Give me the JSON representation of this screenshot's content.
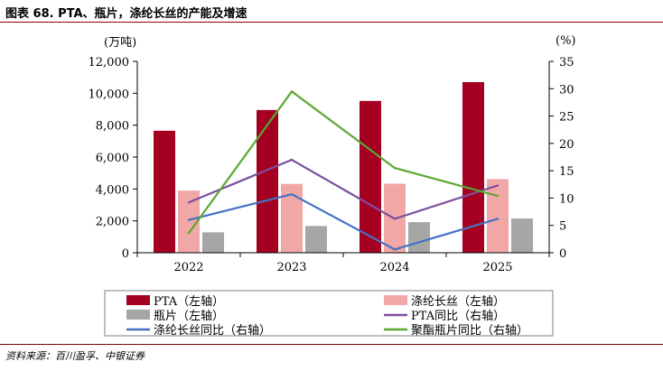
{
  "header": {
    "title": "图表 68. PTA、瓶片，涤纶长丝的产能及增速"
  },
  "footer": {
    "source": "资料来源：百川盈孚、中银证券"
  },
  "colors": {
    "pta": "#a50021",
    "polyester": "#f2a7a7",
    "bottle": "#a6a6a6",
    "pta_yoy": "#7b4f9d",
    "polyester_yoy": "#4472c4",
    "bottle_yoy": "#5aa832",
    "accent": "#8b0000"
  },
  "chart_data": {
    "type": "bar",
    "categories": [
      "2022",
      "2023",
      "2024",
      "2025"
    ],
    "y_left": {
      "label": "(万吨)",
      "ylim": [
        0,
        12000
      ],
      "ticks": [
        0,
        2000,
        4000,
        6000,
        8000,
        10000,
        12000
      ],
      "tick_labels": [
        "0",
        "2,000",
        "4,000",
        "6,000",
        "8,000",
        "10,000",
        "12,000"
      ]
    },
    "y_right": {
      "label": "(%)",
      "ylim": [
        0,
        35
      ],
      "ticks": [
        0,
        5,
        10,
        15,
        20,
        25,
        30,
        35
      ],
      "tick_labels": [
        "0",
        "5",
        "10",
        "15",
        "20",
        "25",
        "30",
        "35"
      ]
    },
    "bars": [
      {
        "name": "PTA（左轴）",
        "values": [
          7650,
          8950,
          9520,
          10700
        ],
        "color_key": "pta"
      },
      {
        "name": "涤纶长丝（左轴）",
        "values": [
          3900,
          4320,
          4330,
          4620
        ],
        "color_key": "polyester"
      },
      {
        "name": "瓶片（左轴）",
        "values": [
          1280,
          1680,
          1920,
          2150
        ],
        "color_key": "bottle"
      }
    ],
    "lines": [
      {
        "name": "PTA同比（右轴）",
        "values": [
          9.2,
          17.0,
          6.2,
          12.3
        ],
        "color_key": "pta_yoy"
      },
      {
        "name": "涤纶长丝同比（右轴）",
        "values": [
          6.0,
          10.7,
          0.6,
          6.2
        ],
        "color_key": "polyester_yoy"
      },
      {
        "name": "聚酯瓶片同比（右轴）",
        "values": [
          3.6,
          29.5,
          15.5,
          10.4
        ],
        "color_key": "bottle_yoy"
      }
    ],
    "legend_order": [
      {
        "name": "PTA（左轴）",
        "kind": "bar",
        "color_key": "pta"
      },
      {
        "name": "涤纶长丝（左轴）",
        "kind": "bar",
        "color_key": "polyester"
      },
      {
        "name": "瓶片（左轴）",
        "kind": "bar",
        "color_key": "bottle"
      },
      {
        "name": "PTA同比（右轴）",
        "kind": "line",
        "color_key": "pta_yoy"
      },
      {
        "name": "涤纶长丝同比（右轴）",
        "kind": "line",
        "color_key": "polyester_yoy"
      },
      {
        "name": "聚酯瓶片同比（右轴）",
        "kind": "line",
        "color_key": "bottle_yoy"
      }
    ],
    "legend_position": "bottom"
  }
}
